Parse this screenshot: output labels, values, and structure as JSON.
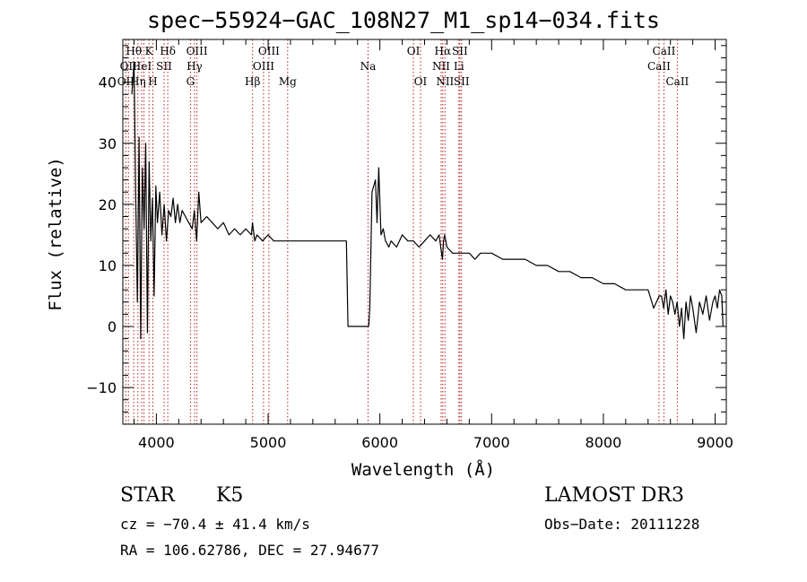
{
  "chart_data": {
    "type": "line",
    "title": "spec−55924−GAC_108N27_M1_sp14−034.fits",
    "xlabel": "Wavelength (Å)",
    "ylabel": "Flux (relative)",
    "xlim": [
      3700,
      9100
    ],
    "ylim": [
      -16,
      47
    ],
    "xticks": [
      {
        "value": 4000,
        "label": "4000"
      },
      {
        "value": 5000,
        "label": "5000"
      },
      {
        "value": 6000,
        "label": "6000"
      },
      {
        "value": 7000,
        "label": "7000"
      },
      {
        "value": 8000,
        "label": "8000"
      },
      {
        "value": 9000,
        "label": "9000"
      }
    ],
    "yticks": [
      {
        "value": -10,
        "label": "−10"
      },
      {
        "value": 0,
        "label": "0"
      },
      {
        "value": 10,
        "label": "10"
      },
      {
        "value": 20,
        "label": "20"
      },
      {
        "value": 30,
        "label": "30"
      },
      {
        "value": 40,
        "label": "40"
      }
    ],
    "series": [
      {
        "name": "spectrum",
        "x": [
          3780,
          3800,
          3815,
          3830,
          3845,
          3860,
          3875,
          3890,
          3905,
          3920,
          3935,
          3950,
          3965,
          3980,
          3995,
          4010,
          4030,
          4050,
          4070,
          4090,
          4110,
          4130,
          4150,
          4170,
          4190,
          4210,
          4230,
          4260,
          4290,
          4320,
          4340,
          4360,
          4380,
          4400,
          4450,
          4500,
          4550,
          4600,
          4650,
          4700,
          4750,
          4800,
          4850,
          4860,
          4880,
          4900,
          4950,
          5000,
          5050,
          5100,
          5150,
          5200,
          5250,
          5300,
          5350,
          5400,
          5450,
          5500,
          5550,
          5600,
          5650,
          5700,
          5715,
          5730,
          5900,
          5910,
          5930,
          5960,
          5975,
          5990,
          6010,
          6030,
          6050,
          6080,
          6100,
          6150,
          6200,
          6250,
          6300,
          6350,
          6400,
          6450,
          6500,
          6530,
          6560,
          6570,
          6580,
          6600,
          6650,
          6700,
          6750,
          6800,
          6850,
          6900,
          6950,
          7000,
          7100,
          7200,
          7300,
          7400,
          7500,
          7600,
          7700,
          7800,
          7900,
          8000,
          8100,
          8200,
          8300,
          8400,
          8450,
          8500,
          8520,
          8540,
          8560,
          8580,
          8600,
          8620,
          8640,
          8660,
          8680,
          8700,
          8720,
          8740,
          8760,
          8780,
          8800,
          8830,
          8860,
          8890,
          8920,
          8950,
          8980,
          9000,
          9020,
          9040,
          9060,
          9070
        ],
        "y": [
          38,
          43,
          22,
          4,
          31,
          -2,
          26,
          16,
          30,
          -1,
          27,
          14,
          21,
          5,
          23,
          17,
          22,
          15,
          20,
          14,
          19,
          18,
          21,
          17,
          20,
          17,
          19,
          18,
          17,
          16,
          19,
          14,
          22,
          17,
          18,
          17,
          16,
          17,
          15,
          16,
          15,
          16,
          15,
          17,
          14,
          15,
          14,
          15,
          14,
          14,
          14,
          14,
          14,
          14,
          14,
          14,
          14,
          14,
          14,
          14,
          14,
          14,
          0,
          0,
          0,
          3,
          22,
          24,
          17,
          26,
          15,
          16,
          14,
          13,
          14,
          13,
          15,
          14,
          14,
          13,
          14,
          15,
          14,
          15,
          11,
          14,
          15,
          13,
          12,
          12,
          12,
          12,
          11,
          12,
          12,
          12,
          11,
          11,
          11,
          10,
          10,
          9,
          9,
          8,
          8,
          7,
          7,
          6,
          6,
          6,
          3,
          5,
          5,
          3,
          6,
          2,
          5,
          4,
          2,
          4,
          0,
          3,
          -2,
          4,
          1,
          5,
          3,
          -1,
          4,
          2,
          5,
          1,
          4,
          5,
          3,
          6,
          5,
          0
        ]
      }
    ],
    "line_annotations": [
      {
        "wavelength": 3727,
        "label": "OII",
        "row": 3
      },
      {
        "wavelength": 3750,
        "label": "OII",
        "row": 2
      },
      {
        "wavelength": 3798,
        "label": "Hθ",
        "row": 1
      },
      {
        "wavelength": 3835,
        "label": "Hη",
        "row": 3
      },
      {
        "wavelength": 3869,
        "label": "HeI",
        "row": 2
      },
      {
        "wavelength": 3889,
        "label": "",
        "row": 0
      },
      {
        "wavelength": 3934,
        "label": "K",
        "row": 1
      },
      {
        "wavelength": 3969,
        "label": "H",
        "row": 3
      },
      {
        "wavelength": 4069,
        "label": "SII",
        "row": 2
      },
      {
        "wavelength": 4102,
        "label": "Hδ",
        "row": 1
      },
      {
        "wavelength": 4305,
        "label": "G",
        "row": 3
      },
      {
        "wavelength": 4341,
        "label": "Hγ",
        "row": 2
      },
      {
        "wavelength": 4363,
        "label": "OIII",
        "row": 1
      },
      {
        "wavelength": 4861,
        "label": "Hβ",
        "row": 3
      },
      {
        "wavelength": 4959,
        "label": "OIII",
        "row": 2
      },
      {
        "wavelength": 5007,
        "label": "OIII",
        "row": 1
      },
      {
        "wavelength": 5175,
        "label": "Mg",
        "row": 3
      },
      {
        "wavelength": 5894,
        "label": "Na",
        "row": 2
      },
      {
        "wavelength": 6300,
        "label": "OI",
        "row": 1
      },
      {
        "wavelength": 6364,
        "label": "OI",
        "row": 3
      },
      {
        "wavelength": 6548,
        "label": "NII",
        "row": 2
      },
      {
        "wavelength": 6563,
        "label": "Hα",
        "row": 1
      },
      {
        "wavelength": 6583,
        "label": "NII",
        "row": 3
      },
      {
        "wavelength": 6707,
        "label": "Li",
        "row": 2
      },
      {
        "wavelength": 6716,
        "label": "SII",
        "row": 1
      },
      {
        "wavelength": 6731,
        "label": "SII",
        "row": 3
      },
      {
        "wavelength": 8498,
        "label": "CaII",
        "row": 2
      },
      {
        "wavelength": 8542,
        "label": "CaII",
        "row": 1
      },
      {
        "wavelength": 8662,
        "label": "CaII",
        "row": 3
      }
    ]
  },
  "info": {
    "class": "STAR",
    "subclass": "K5",
    "survey": "LAMOST DR3",
    "cz": "cz = −70.4 ± 41.4 km/s",
    "obs_date": "Obs−Date: 20111228",
    "coords": "RA = 106.62786, DEC =  27.94677"
  },
  "colors": {
    "spectrum": "#000000",
    "line_markers": "#b22222",
    "axes": "#000000"
  }
}
